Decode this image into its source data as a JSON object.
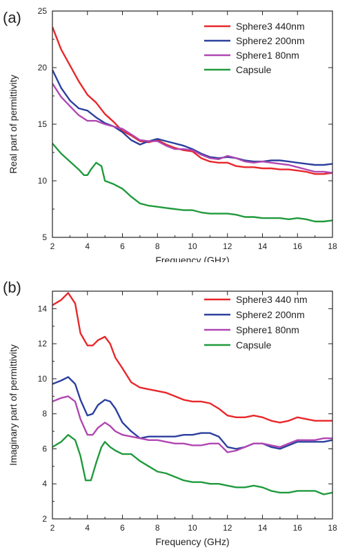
{
  "chart_data": [
    {
      "type": "line",
      "panel_label": "(a)",
      "title": "",
      "xlabel": "Frequency (GHz)",
      "ylabel": "Real part of permittivity",
      "xlim": [
        2,
        18
      ],
      "ylim": [
        5,
        25
      ],
      "xticks": [
        2,
        4,
        6,
        8,
        10,
        12,
        14,
        16,
        18
      ],
      "yticks": [
        5,
        10,
        15,
        20,
        25
      ],
      "grid": false,
      "legend_position": "top-right",
      "series": [
        {
          "name": "Sphere3 440nm",
          "color": "#e8262a",
          "x": [
            2,
            2.5,
            3,
            3.5,
            4,
            4.5,
            5,
            5.5,
            6,
            6.5,
            7,
            7.5,
            8,
            8.5,
            9,
            9.5,
            10,
            10.5,
            11,
            11.5,
            12,
            12.5,
            13,
            13.5,
            14,
            14.5,
            15,
            15.5,
            16,
            16.5,
            17,
            17.5,
            18
          ],
          "y": [
            23.6,
            21.6,
            20.2,
            18.8,
            17.6,
            16.9,
            15.9,
            15.2,
            14.4,
            14.0,
            13.5,
            13.4,
            13.6,
            13.2,
            12.9,
            12.7,
            12.6,
            12.0,
            11.7,
            11.6,
            11.6,
            11.3,
            11.2,
            11.2,
            11.1,
            11.1,
            11.0,
            11.0,
            10.9,
            10.8,
            10.6,
            10.6,
            10.7
          ]
        },
        {
          "name": "Sphere2 200nm",
          "color": "#2b3f9e",
          "x": [
            2,
            2.5,
            3,
            3.5,
            4,
            4.5,
            5,
            5.5,
            6,
            6.5,
            7,
            7.5,
            8,
            8.5,
            9,
            9.5,
            10,
            10.5,
            11,
            11.5,
            12,
            12.5,
            13,
            13.5,
            14,
            14.5,
            15,
            15.5,
            16,
            16.5,
            17,
            17.5,
            18
          ],
          "y": [
            19.8,
            18.2,
            17.1,
            16.4,
            16.2,
            15.6,
            15.1,
            14.8,
            14.3,
            13.6,
            13.2,
            13.5,
            13.7,
            13.5,
            13.3,
            13.1,
            12.8,
            12.4,
            12.1,
            12.0,
            12.1,
            12.0,
            11.8,
            11.7,
            11.7,
            11.8,
            11.8,
            11.7,
            11.6,
            11.5,
            11.4,
            11.4,
            11.5
          ]
        },
        {
          "name": "Sphere1 80nm",
          "color": "#b046b2",
          "x": [
            2,
            2.5,
            3,
            3.5,
            4,
            4.5,
            5,
            5.5,
            6,
            6.5,
            7,
            7.5,
            8,
            8.5,
            9,
            9.5,
            10,
            10.5,
            11,
            11.5,
            12,
            12.5,
            13,
            13.5,
            14,
            14.5,
            15,
            15.5,
            16,
            16.5,
            17,
            17.5,
            18
          ],
          "y": [
            18.6,
            17.4,
            16.6,
            15.8,
            15.3,
            15.3,
            15.0,
            14.8,
            14.6,
            14.1,
            13.6,
            13.5,
            13.5,
            13.1,
            12.8,
            12.8,
            12.7,
            12.3,
            12.0,
            11.9,
            12.2,
            12.0,
            11.7,
            11.6,
            11.7,
            11.6,
            11.5,
            11.4,
            11.2,
            11.0,
            10.8,
            10.8,
            10.7
          ]
        },
        {
          "name": "Capsule",
          "color": "#1f9a3c",
          "x": [
            2,
            2.5,
            3,
            3.5,
            3.8,
            4,
            4.2,
            4.5,
            4.8,
            5,
            5.5,
            6,
            6.5,
            7,
            7.5,
            8,
            8.5,
            9,
            9.5,
            10,
            10.5,
            11,
            11.5,
            12,
            12.5,
            13,
            13.5,
            14,
            14.5,
            15,
            15.5,
            16,
            16.5,
            17,
            17.5,
            18
          ],
          "y": [
            13.3,
            12.4,
            11.7,
            11.0,
            10.5,
            10.5,
            11.0,
            11.6,
            11.3,
            10.0,
            9.7,
            9.3,
            8.6,
            8.0,
            7.8,
            7.7,
            7.6,
            7.5,
            7.4,
            7.4,
            7.2,
            7.1,
            7.1,
            7.1,
            7.0,
            6.8,
            6.8,
            6.7,
            6.7,
            6.7,
            6.6,
            6.7,
            6.6,
            6.4,
            6.4,
            6.5
          ]
        }
      ]
    },
    {
      "type": "line",
      "panel_label": "(b)",
      "title": "",
      "xlabel": "Frequency (GHz)",
      "ylabel": "Imaginary part of permittivity",
      "xlim": [
        2,
        18
      ],
      "ylim": [
        2,
        15
      ],
      "xticks": [
        2,
        4,
        6,
        8,
        10,
        12,
        14,
        16,
        18
      ],
      "yticks": [
        2,
        4,
        6,
        8,
        10,
        12,
        14
      ],
      "grid": false,
      "legend_position": "top-right",
      "series": [
        {
          "name": "Sphere3 440 nm",
          "color": "#e8262a",
          "x": [
            2,
            2.5,
            2.9,
            3.3,
            3.6,
            4,
            4.3,
            4.6,
            5,
            5.3,
            5.6,
            6,
            6.5,
            7,
            7.5,
            8,
            8.5,
            9,
            9.5,
            10,
            10.5,
            11,
            11.5,
            12,
            12.5,
            13,
            13.5,
            14,
            14.5,
            15,
            15.5,
            16,
            16.5,
            17,
            17.5,
            18
          ],
          "y": [
            14.2,
            14.5,
            14.9,
            14.3,
            12.6,
            11.9,
            11.9,
            12.2,
            12.4,
            12.0,
            11.2,
            10.6,
            9.8,
            9.5,
            9.4,
            9.3,
            9.2,
            9.0,
            8.8,
            8.7,
            8.7,
            8.6,
            8.3,
            7.9,
            7.8,
            7.8,
            7.9,
            7.8,
            7.6,
            7.5,
            7.6,
            7.8,
            7.7,
            7.6,
            7.6,
            7.6
          ]
        },
        {
          "name": "Sphere2 200nm",
          "color": "#2b3f9e",
          "x": [
            2,
            2.5,
            2.9,
            3.3,
            3.6,
            4,
            4.3,
            4.6,
            5,
            5.3,
            5.6,
            6,
            6.5,
            7,
            7.5,
            8,
            8.5,
            9,
            9.5,
            10,
            10.5,
            11,
            11.5,
            12,
            12.5,
            13,
            13.5,
            14,
            14.5,
            15,
            15.5,
            16,
            16.5,
            17,
            17.5,
            18
          ],
          "y": [
            9.7,
            9.9,
            10.1,
            9.7,
            8.8,
            7.9,
            8.0,
            8.5,
            8.8,
            8.7,
            8.3,
            7.5,
            7.0,
            6.6,
            6.7,
            6.7,
            6.7,
            6.7,
            6.8,
            6.8,
            6.9,
            6.9,
            6.7,
            6.1,
            6.0,
            6.1,
            6.3,
            6.3,
            6.1,
            6.0,
            6.2,
            6.4,
            6.4,
            6.4,
            6.4,
            6.5
          ]
        },
        {
          "name": "Sphere1 80nm",
          "color": "#b046b2",
          "x": [
            2,
            2.5,
            2.9,
            3.3,
            3.6,
            4,
            4.3,
            4.6,
            5,
            5.3,
            5.6,
            6,
            6.5,
            7,
            7.5,
            8,
            8.5,
            9,
            9.5,
            10,
            10.5,
            11,
            11.5,
            12,
            12.5,
            13,
            13.5,
            14,
            14.5,
            15,
            15.5,
            16,
            16.5,
            17,
            17.5,
            18
          ],
          "y": [
            8.7,
            8.9,
            9.0,
            8.7,
            7.7,
            6.8,
            6.8,
            7.2,
            7.5,
            7.3,
            7.0,
            6.8,
            6.7,
            6.6,
            6.5,
            6.5,
            6.4,
            6.3,
            6.3,
            6.2,
            6.2,
            6.3,
            6.3,
            5.8,
            5.9,
            6.1,
            6.3,
            6.3,
            6.2,
            6.1,
            6.3,
            6.5,
            6.5,
            6.5,
            6.6,
            6.6
          ]
        },
        {
          "name": "Capsule",
          "color": "#1f9a3c",
          "x": [
            2,
            2.5,
            2.9,
            3.3,
            3.6,
            3.9,
            4.2,
            4.5,
            4.8,
            5,
            5.3,
            5.6,
            6,
            6.5,
            7,
            7.5,
            8,
            8.5,
            9,
            9.5,
            10,
            10.5,
            11,
            11.5,
            12,
            12.5,
            13,
            13.5,
            14,
            14.5,
            15,
            15.5,
            16,
            16.5,
            17,
            17.5,
            18
          ],
          "y": [
            6.1,
            6.4,
            6.8,
            6.5,
            5.6,
            4.2,
            4.2,
            5.2,
            6.1,
            6.4,
            6.1,
            5.9,
            5.7,
            5.7,
            5.3,
            5.0,
            4.7,
            4.6,
            4.4,
            4.2,
            4.1,
            4.1,
            4.0,
            4.0,
            3.9,
            3.8,
            3.8,
            3.9,
            3.8,
            3.6,
            3.5,
            3.5,
            3.6,
            3.6,
            3.6,
            3.4,
            3.5
          ]
        }
      ]
    }
  ]
}
